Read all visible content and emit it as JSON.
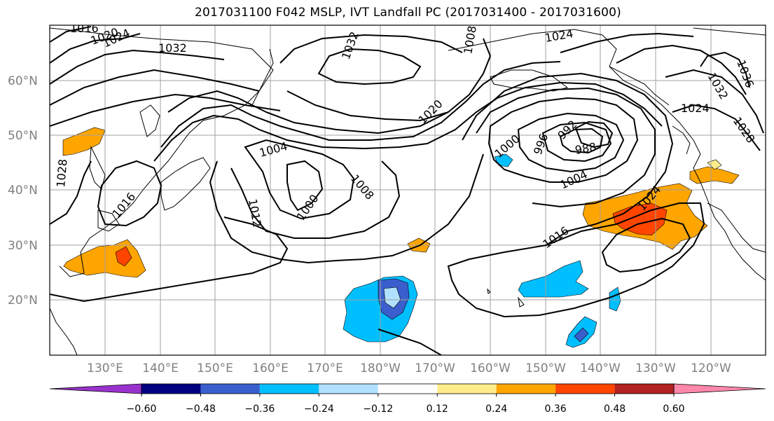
{
  "title": "2017031100 F042 MSLP, IVT Landfall PC (2017031400 - 2017031600)",
  "lat_ticks": [
    "20°N",
    "30°N",
    "40°N",
    "50°N",
    "60°N"
  ],
  "lon_ticks": [
    "130°E",
    "140°E",
    "150°E",
    "160°E",
    "170°E",
    "180°W",
    "170°W",
    "160°W",
    "150°W",
    "140°W",
    "130°W",
    "120°W"
  ],
  "contour_labels": [
    "1016",
    "1020",
    "1024",
    "1032",
    "1032",
    "1008",
    "1024",
    "1028",
    "1016",
    "1004",
    "1008",
    "1000",
    "1012",
    "1020",
    "1000",
    "996",
    "992",
    "988",
    "1004",
    "1016",
    "1024",
    "1024",
    "1032",
    "1036",
    "1028"
  ],
  "colorbar": {
    "tick_labels": [
      "−0.60",
      "−0.48",
      "−0.36",
      "−0.24",
      "−0.12",
      "0.12",
      "0.24",
      "0.36",
      "0.48",
      "0.60"
    ],
    "colors": [
      "#9932cc",
      "#000080",
      "#3a5fcd",
      "#00bfff",
      "#b0e2ff",
      "#ffffff",
      "#ffec8b",
      "#ffa500",
      "#ff4500",
      "#b22222",
      "#ff88aa"
    ]
  }
}
